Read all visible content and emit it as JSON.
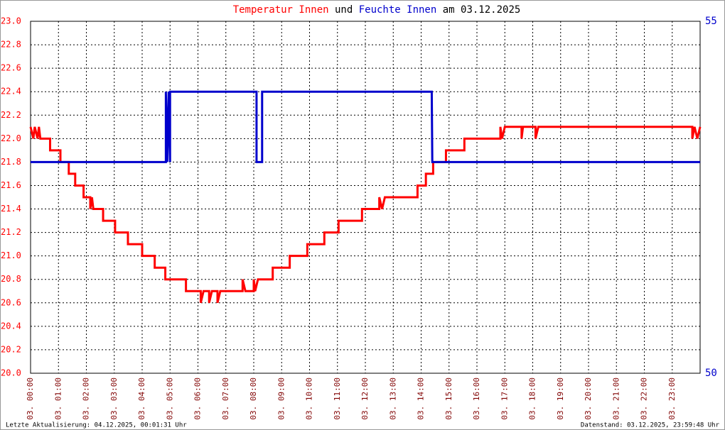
{
  "chart_data": {
    "type": "line",
    "title": {
      "part1": "Temperatur Innen",
      "part2": "und",
      "part3": "Feuchte Innen",
      "part4": "am 03.12.2025"
    },
    "footer_left": "Letzte Aktualisierung: 04.12.2025, 00:01:31 Uhr",
    "footer_right": "Datenstand: 03.12.2025, 23:59:48 Uhr",
    "xlim": [
      0,
      24
    ],
    "xticks": [
      {
        "value": 0,
        "label": "03. 00:00"
      },
      {
        "value": 1,
        "label": "03. 01:00"
      },
      {
        "value": 2,
        "label": "03. 02:00"
      },
      {
        "value": 3,
        "label": "03. 03:00"
      },
      {
        "value": 4,
        "label": "03. 04:00"
      },
      {
        "value": 5,
        "label": "03. 05:00"
      },
      {
        "value": 6,
        "label": "03. 06:00"
      },
      {
        "value": 7,
        "label": "03. 07:00"
      },
      {
        "value": 8,
        "label": "03. 08:00"
      },
      {
        "value": 9,
        "label": "03. 09:00"
      },
      {
        "value": 10,
        "label": "03. 10:00"
      },
      {
        "value": 11,
        "label": "03. 11:00"
      },
      {
        "value": 12,
        "label": "03. 12:00"
      },
      {
        "value": 13,
        "label": "03. 13:00"
      },
      {
        "value": 14,
        "label": "03. 14:00"
      },
      {
        "value": 15,
        "label": "03. 15:00"
      },
      {
        "value": 16,
        "label": "03. 16:00"
      },
      {
        "value": 17,
        "label": "03. 17:00"
      },
      {
        "value": 18,
        "label": "03. 18:00"
      },
      {
        "value": 19,
        "label": "03. 19:00"
      },
      {
        "value": 20,
        "label": "03. 20:00"
      },
      {
        "value": 21,
        "label": "03. 21:00"
      },
      {
        "value": 22,
        "label": "03. 22:00"
      },
      {
        "value": 23,
        "label": "03. 23:00"
      }
    ],
    "ylim": [
      20,
      23
    ],
    "yticks": [
      {
        "value": 20,
        "label": "20.0"
      },
      20.2,
      20.4,
      20.6,
      20.8,
      {
        "value": 21,
        "label": "21.0"
      },
      21.2,
      21.4,
      21.6,
      21.8,
      {
        "value": 22,
        "label": "22.0"
      },
      22.2,
      22.4,
      22.6,
      22.8,
      {
        "value": 23,
        "label": "23.0"
      }
    ],
    "y2lim": [
      50,
      55
    ],
    "y2ticks": [
      50,
      55
    ],
    "grid": true,
    "series": [
      {
        "name": "Temperatur Innen",
        "color": "#ff0000",
        "x": [
          0,
          0.1,
          0.15,
          0.25,
          0.3,
          0.35,
          0.7,
          0.7,
          1.07,
          1.07,
          1.37,
          1.37,
          1.6,
          1.6,
          1.9,
          1.9,
          2.14,
          2.14,
          2.2,
          2.25,
          2.6,
          2.6,
          3.03,
          3.03,
          3.49,
          3.49,
          4.0,
          4.0,
          4.45,
          4.45,
          4.83,
          4.83,
          5.57,
          5.57,
          6.1,
          6.1,
          6.2,
          6.4,
          6.4,
          6.5,
          6.7,
          6.7,
          6.8,
          7.6,
          7.6,
          7.7,
          8.0,
          8.0,
          8.05,
          8.15,
          8.68,
          8.68,
          9.29,
          9.29,
          9.92,
          9.92,
          10.53,
          10.53,
          11.04,
          11.04,
          11.88,
          11.88,
          12.5,
          12.5,
          12.6,
          12.7,
          13.87,
          13.87,
          14.17,
          14.17,
          14.43,
          14.43,
          14.89,
          14.89,
          15.55,
          15.55,
          16.84,
          16.84,
          16.9,
          17.0,
          17.6,
          17.6,
          17.65,
          18.1,
          18.1,
          18.2,
          23.72,
          23.72,
          23.8,
          23.9,
          24
        ],
        "values": [
          22.1,
          22.0,
          22.1,
          22.0,
          22.1,
          22.0,
          22.0,
          21.9,
          21.9,
          21.8,
          21.8,
          21.7,
          21.7,
          21.6,
          21.6,
          21.5,
          21.5,
          21.4,
          21.5,
          21.4,
          21.4,
          21.3,
          21.3,
          21.2,
          21.2,
          21.1,
          21.1,
          21.0,
          21.0,
          20.9,
          20.9,
          20.8,
          20.8,
          20.7,
          20.7,
          20.6,
          20.7,
          20.7,
          20.6,
          20.7,
          20.7,
          20.6,
          20.7,
          20.7,
          20.8,
          20.7,
          20.7,
          20.8,
          20.7,
          20.8,
          20.8,
          20.9,
          20.9,
          21.0,
          21.0,
          21.1,
          21.1,
          21.2,
          21.2,
          21.3,
          21.3,
          21.4,
          21.4,
          21.5,
          21.4,
          21.5,
          21.5,
          21.6,
          21.6,
          21.7,
          21.7,
          21.8,
          21.8,
          21.9,
          21.9,
          22.0,
          22.0,
          22.1,
          22.0,
          22.1,
          22.1,
          22.0,
          22.1,
          22.1,
          22.0,
          22.1,
          22.1,
          22.0,
          22.1,
          22.0,
          22.1
        ]
      },
      {
        "name": "Feuchte Innen",
        "color": "#0000cc",
        "axis": "y2",
        "x": [
          0,
          4.85,
          4.85,
          4.9,
          4.95,
          5.0,
          5.0,
          8.1,
          8.1,
          8.3,
          8.3,
          14.38,
          14.4,
          24
        ],
        "values": [
          53,
          53,
          54,
          53,
          54,
          53,
          54,
          54,
          53,
          53,
          54,
          54,
          53,
          53
        ]
      }
    ]
  }
}
